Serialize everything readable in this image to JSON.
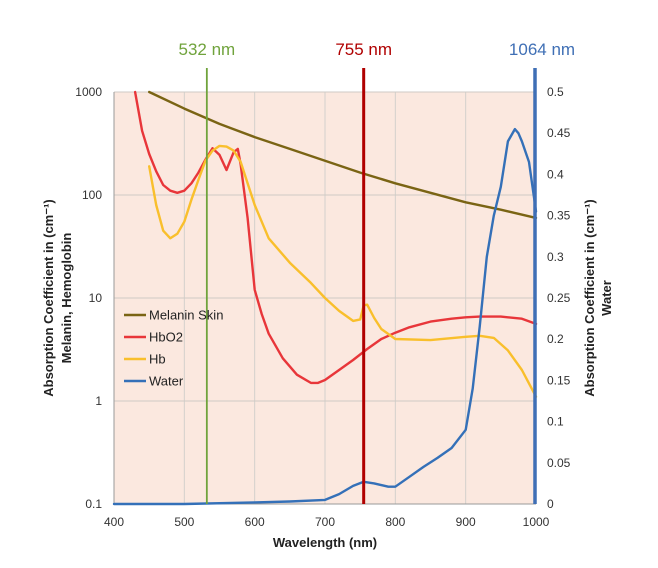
{
  "chart_data": {
    "type": "line",
    "xlabel": "Wavelength (nm)",
    "ylabel_left": [
      "Absorption Coefficient in (cm⁻¹)",
      "Melanin, Hemoglobin"
    ],
    "ylabel_right": [
      "Absorption Coefficient in (cm⁻¹)",
      "Water"
    ],
    "xlim": [
      400,
      1000
    ],
    "x_ticks": [
      "400",
      "500",
      "600",
      "700",
      "800",
      "900",
      "1000"
    ],
    "y_left_scale": "log",
    "y_left_lim": [
      0.1,
      1000
    ],
    "y_left_ticks": [
      "0.1",
      "1",
      "10",
      "100",
      "1000"
    ],
    "y_right_lim": [
      0,
      0.5
    ],
    "y_right_ticks": [
      "0",
      "0.05",
      "0.1",
      "0.15",
      "0.2",
      "0.25",
      "0.3",
      "0.35",
      "0.4",
      "0.45",
      "0.5"
    ],
    "grid": true,
    "legend_position": "left-middle",
    "markers": [
      {
        "label": "532 nm",
        "x": 532,
        "color": "#70a33c"
      },
      {
        "label": "755 nm",
        "x": 755,
        "color": "#b00000"
      },
      {
        "label": "1064 nm",
        "x": 1000,
        "color": "#3f6fb5"
      }
    ],
    "series": [
      {
        "name": "Melanin Skin",
        "color": "#7a6414",
        "axis": "left",
        "x": [
          450,
          500,
          550,
          600,
          650,
          700,
          750,
          800,
          850,
          900,
          950,
          1000
        ],
        "y": [
          1000,
          690,
          490,
          365,
          280,
          215,
          165,
          130,
          105,
          85,
          72,
          60
        ]
      },
      {
        "name": "HbO2",
        "color": "#e8363a",
        "axis": "left",
        "x": [
          430,
          440,
          450,
          460,
          470,
          480,
          490,
          500,
          510,
          520,
          530,
          540,
          550,
          560,
          570,
          576,
          580,
          590,
          600,
          610,
          620,
          640,
          660,
          680,
          690,
          700,
          720,
          740,
          760,
          780,
          800,
          820,
          850,
          880,
          900,
          920,
          950,
          980,
          1000
        ],
        "y": [
          1000,
          420,
          250,
          170,
          125,
          110,
          105,
          110,
          130,
          165,
          220,
          285,
          245,
          175,
          260,
          280,
          200,
          60,
          12,
          7,
          4.5,
          2.6,
          1.8,
          1.5,
          1.5,
          1.6,
          2.0,
          2.5,
          3.2,
          4.0,
          4.6,
          5.2,
          5.9,
          6.3,
          6.5,
          6.6,
          6.6,
          6.3,
          5.6
        ]
      },
      {
        "name": "Hb",
        "color": "#f9bf2c",
        "axis": "left",
        "x": [
          450,
          460,
          470,
          480,
          490,
          500,
          510,
          520,
          530,
          540,
          550,
          560,
          570,
          580,
          590,
          600,
          620,
          650,
          680,
          700,
          720,
          740,
          750,
          755,
          760,
          770,
          780,
          800,
          850,
          900,
          920,
          940,
          960,
          980,
          1000
        ],
        "y": [
          190,
          80,
          45,
          38,
          42,
          55,
          90,
          140,
          215,
          270,
          300,
          295,
          270,
          210,
          130,
          80,
          38,
          22,
          14,
          10,
          7.5,
          6,
          6.2,
          8.5,
          8.6,
          6.4,
          5.0,
          4.0,
          3.9,
          4.2,
          4.3,
          4.1,
          3.1,
          2.0,
          1.1
        ]
      },
      {
        "name": "Water",
        "color": "#3470b8",
        "axis": "right",
        "x": [
          400,
          500,
          600,
          650,
          700,
          720,
          740,
          755,
          770,
          790,
          800,
          820,
          840,
          860,
          880,
          900,
          910,
          920,
          930,
          940,
          950,
          960,
          970,
          975,
          980,
          990,
          1000
        ],
        "y": [
          0.0,
          0.0,
          0.002,
          0.003,
          0.005,
          0.012,
          0.022,
          0.027,
          0.025,
          0.021,
          0.021,
          0.033,
          0.045,
          0.056,
          0.068,
          0.09,
          0.14,
          0.215,
          0.3,
          0.35,
          0.385,
          0.44,
          0.455,
          0.45,
          0.44,
          0.415,
          0.355
        ]
      }
    ]
  }
}
